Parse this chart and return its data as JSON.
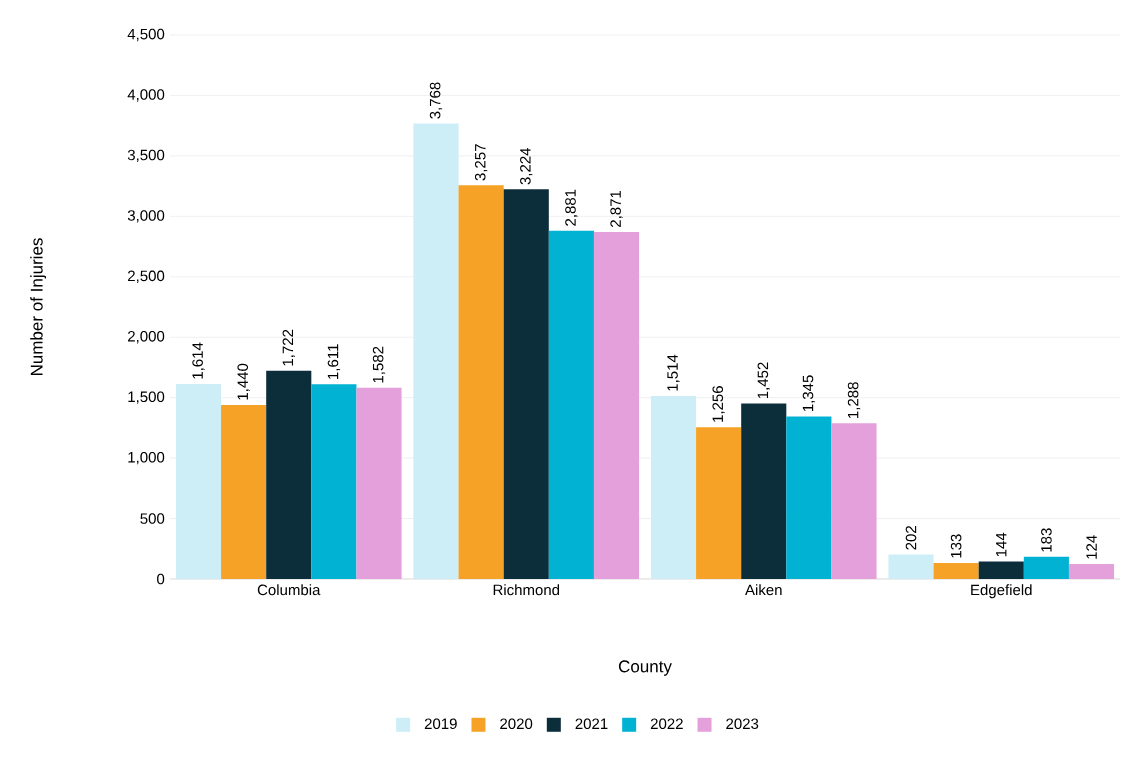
{
  "chart_data": {
    "type": "bar",
    "xlabel": "County",
    "ylabel": "Number of Injuries",
    "categories": [
      "Columbia",
      "Richmond",
      "Aiken",
      "Edgefield"
    ],
    "series": [
      {
        "name": "2019",
        "color": "#cdeef6",
        "values": [
          1614,
          3768,
          1514,
          202
        ],
        "value_labels": [
          "1,614",
          "3,768",
          "1,514",
          "202"
        ]
      },
      {
        "name": "2020",
        "color": "#f6a226",
        "values": [
          1440,
          3257,
          1256,
          133
        ],
        "value_labels": [
          "1,440",
          "3,257",
          "1,256",
          "133"
        ]
      },
      {
        "name": "2021",
        "color": "#0c2d3a",
        "values": [
          1722,
          3224,
          1452,
          144
        ],
        "value_labels": [
          "1,722",
          "3,224",
          "1,452",
          "144"
        ]
      },
      {
        "name": "2022",
        "color": "#02b2d2",
        "values": [
          1611,
          2881,
          1345,
          183
        ],
        "value_labels": [
          "1,611",
          "2,881",
          "1,345",
          "183"
        ]
      },
      {
        "name": "2023",
        "color": "#e3a0db",
        "values": [
          1582,
          2871,
          1288,
          124
        ],
        "value_labels": [
          "1,582",
          "2,871",
          "1,288",
          "124"
        ]
      }
    ],
    "ylim": [
      0,
      4500
    ],
    "yticks": [
      {
        "value": 0,
        "label": "0"
      },
      {
        "value": 500,
        "label": "500"
      },
      {
        "value": 1000,
        "label": "1,000"
      },
      {
        "value": 1500,
        "label": "1,500"
      },
      {
        "value": 2000,
        "label": "2,000"
      },
      {
        "value": 2500,
        "label": "2,500"
      },
      {
        "value": 3000,
        "label": "3,000"
      },
      {
        "value": 3500,
        "label": "3,500"
      },
      {
        "value": 4000,
        "label": "4,000"
      },
      {
        "value": 4500,
        "label": "4,500"
      }
    ],
    "grid": "y",
    "legend": "bottom"
  }
}
